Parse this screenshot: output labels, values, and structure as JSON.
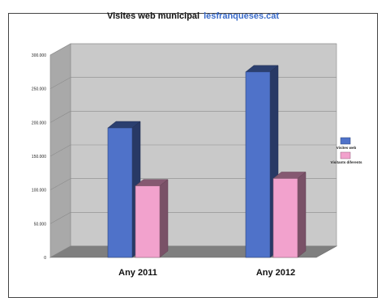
{
  "chart_data": {
    "type": "bar",
    "title": "Visites web municipal",
    "subtitle": "lesfranqueses.cat",
    "categories": [
      "Any 2011",
      "Any 2012"
    ],
    "series": [
      {
        "name": "Visites web",
        "values": [
          192000,
          275000
        ],
        "color": "#4f72c9"
      },
      {
        "name": "Visitants diferents",
        "values": [
          106000,
          117000
        ],
        "color": "#f2a2cd"
      }
    ],
    "ylim": [
      0,
      300000
    ],
    "yticks": [
      "0",
      "50.000",
      "100.000",
      "150.000",
      "200.000",
      "250.000",
      "300.000"
    ],
    "grid": true,
    "legend": "right",
    "style": "3d-bars"
  }
}
